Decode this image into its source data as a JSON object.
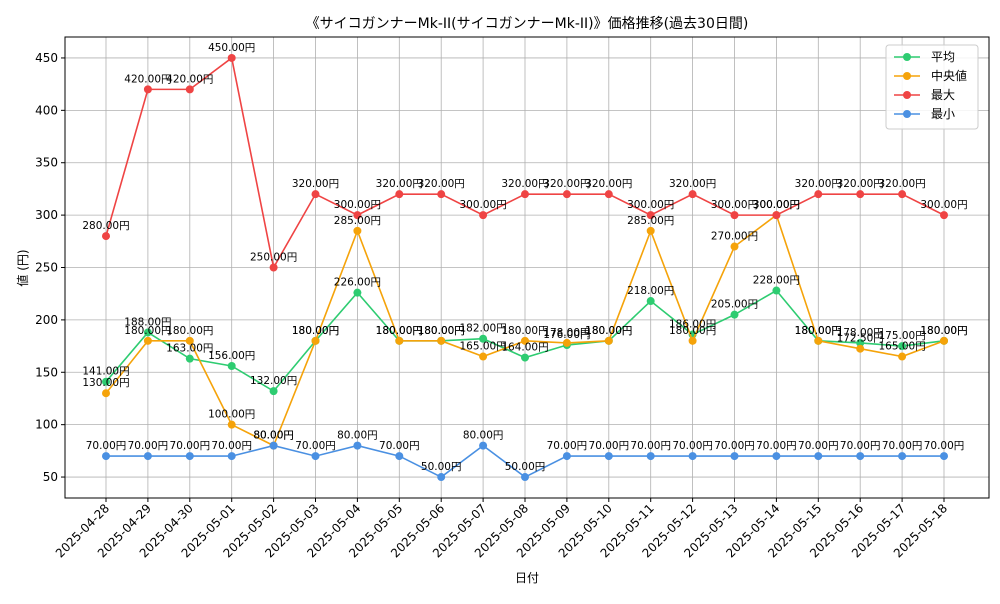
{
  "chart_data": {
    "type": "line",
    "title": "《サイコガンナーMk-II(サイコガンナーMk-II)》価格推移(過去30日間)",
    "xlabel": "日付",
    "ylabel": "値 (円)",
    "ylim": [
      30,
      470
    ],
    "yticks": [
      50,
      100,
      150,
      200,
      250,
      300,
      350,
      400,
      450
    ],
    "grid": true,
    "legend_position": "top-right",
    "categories": [
      "2025-04-28",
      "2025-04-29",
      "2025-04-30",
      "2025-05-01",
      "2025-05-02",
      "2025-05-03",
      "2025-05-04",
      "2025-05-05",
      "2025-05-06",
      "2025-05-07",
      "2025-05-08",
      "2025-05-09",
      "2025-05-10",
      "2025-05-11",
      "2025-05-12",
      "2025-05-13",
      "2025-05-14",
      "2025-05-15",
      "2025-05-16",
      "2025-05-17",
      "2025-05-18"
    ],
    "series": [
      {
        "name": "平均",
        "color": "#2ecc71",
        "values": [
          141,
          188,
          163,
          156,
          132,
          180,
          226,
          180,
          180,
          182,
          164,
          176,
          180,
          218,
          186,
          205,
          228,
          180,
          178,
          175,
          180
        ]
      },
      {
        "name": "中央値",
        "color": "#f5a30a",
        "values": [
          130,
          180,
          180,
          100,
          80,
          180,
          285,
          180,
          180,
          165,
          180,
          178,
          180,
          285,
          180,
          270,
          300,
          180,
          172.5,
          165,
          180
        ]
      },
      {
        "name": "最大",
        "color": "#ef4444",
        "values": [
          280,
          420,
          420,
          450,
          250,
          320,
          300,
          320,
          320,
          300,
          320,
          320,
          320,
          300,
          320,
          300,
          300,
          320,
          320,
          320,
          300
        ]
      },
      {
        "name": "最小",
        "color": "#4a90e2",
        "values": [
          70,
          70,
          70,
          70,
          80,
          70,
          80,
          70,
          50,
          80,
          50,
          70,
          70,
          70,
          70,
          70,
          70,
          70,
          70,
          70,
          70
        ]
      }
    ],
    "data_labels": {
      "平均": [
        "141.00円",
        "188.00円",
        "163.00円",
        "156.00円",
        "132.00円",
        "180.00円",
        "226.00円",
        "180.00円",
        "180.00円",
        "182.00円",
        "164.00円",
        "176.00円",
        "180.00円",
        "218.00円",
        "186.00円",
        "205.00円",
        "228.00円",
        "180.00円",
        "178.00円",
        "175.00円",
        "180.00円"
      ],
      "中央値": [
        "130.00円",
        "180.00円",
        "180.00円",
        "100.00円",
        "80.00円",
        "180.00円",
        "285.00円",
        "180.00円",
        "180.00円",
        "165.00円",
        "180.00円",
        "178.00円",
        "180.00円",
        "285.00円",
        "180.00円",
        "270.00円",
        "300.00円",
        "180.00円",
        "172.50円",
        "165.00円",
        "180.00円"
      ],
      "最大": [
        "280.00円",
        "420.00円",
        "420.00円",
        "450.00円",
        "250.00円",
        "320.00円",
        "300.00円",
        "320.00円",
        "320.00円",
        "300.00円",
        "320.00円",
        "320.00円",
        "320.00円",
        "300.00円",
        "320.00円",
        "300.00円",
        "300.00円",
        "320.00円",
        "320.00円",
        "320.00円",
        "300.00円"
      ],
      "最小": [
        "70.00円",
        "70.00円",
        "70.00円",
        "70.00円",
        "80.00円",
        "70.00円",
        "80.00円",
        "70.00円",
        "50.00円",
        "80.00円",
        "50.00円",
        "70.00円",
        "70.00円",
        "70.00円",
        "70.00円",
        "70.00円",
        "70.00円",
        "70.00円",
        "70.00円",
        "70.00円",
        "70.00円"
      ]
    }
  }
}
